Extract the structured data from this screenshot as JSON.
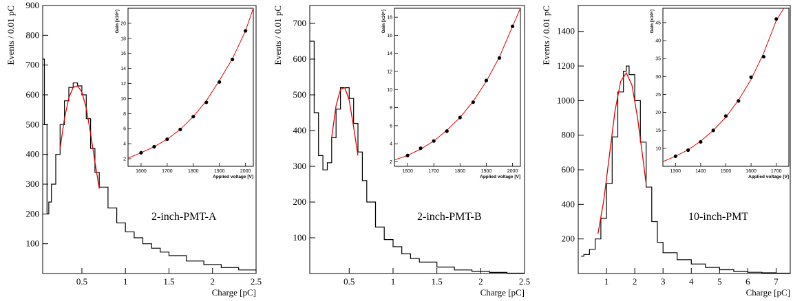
{
  "chart_data": [
    {
      "type": "line",
      "panel_label": "2-inch-PMT-A",
      "xlabel": "Charge [pC]",
      "ylabel": "Events / 0.01 pC",
      "xlim": [
        0.05,
        2.5
      ],
      "ylim": [
        0,
        900
      ],
      "xticks": [
        "0.5",
        "1",
        "1.5",
        "2",
        "2.5"
      ],
      "yticks": [
        "100",
        "200",
        "300",
        "400",
        "500",
        "600",
        "700",
        "800",
        "900"
      ],
      "series": [
        {
          "x": [
            0.05,
            0.07,
            0.1,
            0.12,
            0.15,
            0.2,
            0.25,
            0.3,
            0.35,
            0.4,
            0.45,
            0.5,
            0.55,
            0.6,
            0.65,
            0.7,
            0.8,
            0.9,
            1.0,
            1.1,
            1.2,
            1.3,
            1.4,
            1.5,
            1.7,
            1.9,
            2.1,
            2.3,
            2.5
          ],
          "y": [
            720,
            500,
            200,
            240,
            300,
            400,
            500,
            580,
            625,
            640,
            630,
            600,
            520,
            420,
            340,
            290,
            220,
            170,
            140,
            120,
            100,
            85,
            72,
            60,
            42,
            30,
            20,
            12,
            8
          ]
        },
        {
          "x": [
            0.25,
            0.3,
            0.35,
            0.4,
            0.45,
            0.5,
            0.55,
            0.6,
            0.65,
            0.7
          ],
          "y": [
            420,
            520,
            590,
            625,
            630,
            610,
            555,
            470,
            375,
            285
          ]
        }
      ],
      "inset": {
        "xlabel": "Applied voltage [V]",
        "ylabel": "Gain [x10⁶]",
        "xlim": [
          1550,
          2030
        ],
        "ylim": [
          1,
          22
        ],
        "xticks": [
          "1600",
          "1700",
          "1800",
          "1900",
          "2000"
        ],
        "yticks": [
          "2",
          "4",
          "6",
          "8",
          "10",
          "12",
          "14",
          "16",
          "18",
          "20"
        ],
        "points": {
          "x": [
            1600,
            1650,
            1700,
            1750,
            1800,
            1850,
            1900,
            1950,
            2000
          ],
          "y": [
            2.8,
            3.6,
            4.6,
            5.9,
            7.6,
            9.5,
            12.2,
            15.2,
            19.0
          ]
        },
        "fit": {
          "x": [
            1550,
            1600,
            1650,
            1700,
            1750,
            1800,
            1850,
            1900,
            1950,
            2000,
            2030
          ],
          "y": [
            2.1,
            2.8,
            3.6,
            4.6,
            5.9,
            7.6,
            9.7,
            12.4,
            15.3,
            19.0,
            22.0
          ]
        }
      }
    },
    {
      "type": "line",
      "panel_label": "2-inch-PMT-B",
      "xlabel": "Charge [pC]",
      "ylabel": "Events / 0.01 pC",
      "xlim": [
        0.05,
        2.5
      ],
      "ylim": [
        0,
        750
      ],
      "xticks": [
        "0.5",
        "1",
        "1.5",
        "2",
        "2.5"
      ],
      "yticks": [
        "100",
        "200",
        "300",
        "400",
        "500",
        "600",
        "700"
      ],
      "series": [
        {
          "x": [
            0.05,
            0.1,
            0.15,
            0.2,
            0.25,
            0.3,
            0.35,
            0.4,
            0.45,
            0.5,
            0.55,
            0.6,
            0.65,
            0.7,
            0.8,
            0.9,
            1.0,
            1.1,
            1.2,
            1.3,
            1.5,
            1.7,
            1.9,
            2.1,
            2.3,
            2.5
          ],
          "y": [
            650,
            450,
            330,
            290,
            310,
            380,
            460,
            520,
            520,
            490,
            420,
            340,
            260,
            200,
            130,
            95,
            75,
            55,
            42,
            32,
            18,
            10,
            6,
            3,
            1,
            1
          ]
        },
        {
          "x": [
            0.3,
            0.35,
            0.4,
            0.45,
            0.5,
            0.55,
            0.6
          ],
          "y": [
            380,
            470,
            515,
            520,
            485,
            410,
            330
          ]
        }
      ],
      "inset": {
        "xlabel": "Applied voltage [V]",
        "ylabel": "Gain [x10⁶]",
        "xlim": [
          1550,
          2030
        ],
        "ylim": [
          1.5,
          19
        ],
        "xticks": [
          "1600",
          "1700",
          "1800",
          "1900",
          "2000"
        ],
        "yticks": [
          "2",
          "4",
          "6",
          "8",
          "10",
          "12",
          "14",
          "16",
          "18"
        ],
        "points": {
          "x": [
            1600,
            1650,
            1700,
            1750,
            1800,
            1850,
            1900,
            1950,
            2000
          ],
          "y": [
            2.7,
            3.5,
            4.3,
            5.4,
            6.9,
            8.6,
            11.0,
            13.5,
            17.0
          ]
        },
        "fit": {
          "x": [
            1550,
            1600,
            1650,
            1700,
            1750,
            1800,
            1850,
            1900,
            1950,
            2000,
            2030
          ],
          "y": [
            2.2,
            2.7,
            3.4,
            4.3,
            5.5,
            6.9,
            8.7,
            10.9,
            13.6,
            17.0,
            19.0
          ]
        }
      }
    },
    {
      "type": "line",
      "panel_label": "10-inch-PMT",
      "xlabel": "Charge [pC]",
      "ylabel": "Events / 0.01 pC",
      "xlim": [
        0,
        7.5
      ],
      "ylim": [
        0,
        1550
      ],
      "xticks": [
        "1",
        "2",
        "3",
        "4",
        "5",
        "6",
        "7"
      ],
      "yticks": [
        "200",
        "400",
        "600",
        "800",
        "1000",
        "1200",
        "1400"
      ],
      "series": [
        {
          "x": [
            0.1,
            0.2,
            0.4,
            0.6,
            0.8,
            1.0,
            1.2,
            1.4,
            1.6,
            1.7,
            1.8,
            2.0,
            2.2,
            2.4,
            2.6,
            2.8,
            3.0,
            3.5,
            4.0,
            4.5,
            5.0,
            5.5,
            6.0,
            6.5,
            7.0,
            7.5
          ],
          "y": [
            100,
            110,
            140,
            200,
            320,
            520,
            790,
            1050,
            1170,
            1200,
            1150,
            1000,
            760,
            500,
            300,
            180,
            120,
            80,
            55,
            35,
            22,
            12,
            7,
            4,
            2,
            1
          ]
        },
        {
          "x": [
            0.7,
            0.9,
            1.1,
            1.3,
            1.5,
            1.7,
            1.9,
            2.1,
            2.3,
            2.4
          ],
          "y": [
            230,
            420,
            680,
            940,
            1110,
            1160,
            1090,
            900,
            650,
            520
          ]
        }
      ],
      "inset": {
        "xlabel": "Applied voltage [V]",
        "ylabel": "Gain [x10⁶]",
        "xlim": [
          1250,
          1750
        ],
        "ylim": [
          5,
          49
        ],
        "xticks": [
          "1300",
          "1400",
          "1500",
          "1600",
          "1700"
        ],
        "yticks": [
          "10",
          "15",
          "20",
          "25",
          "30",
          "35",
          "40",
          "45"
        ],
        "points": {
          "x": [
            1300,
            1350,
            1400,
            1450,
            1500,
            1550,
            1600,
            1650,
            1700
          ],
          "y": [
            7.8,
            9.5,
            11.8,
            15.0,
            19.0,
            23.2,
            29.8,
            35.5,
            46.0
          ]
        },
        "fit": {
          "x": [
            1250,
            1300,
            1350,
            1400,
            1450,
            1500,
            1550,
            1600,
            1650,
            1700,
            1730
          ],
          "y": [
            6.3,
            7.8,
            9.6,
            12.0,
            15.0,
            18.7,
            23.4,
            29.2,
            36.5,
            45.6,
            49.0
          ]
        }
      }
    }
  ]
}
